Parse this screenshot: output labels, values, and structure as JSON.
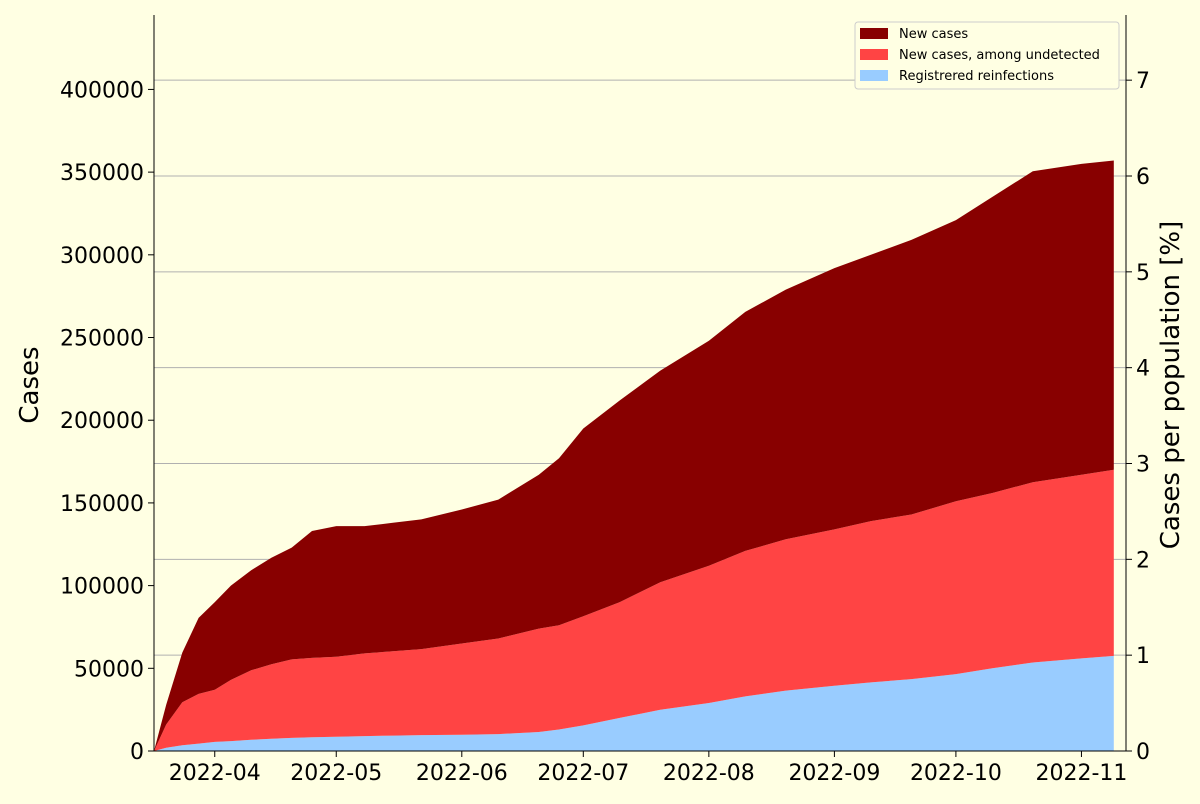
{
  "chart_data": {
    "type": "area",
    "stacked": true,
    "title": "",
    "xlabel": "",
    "ylabel": "Cases",
    "ylabel_right": "Cases per population [%]",
    "ylim": [
      0,
      445000
    ],
    "ylim_right": [
      0,
      7.68
    ],
    "yticks": [
      0,
      50000,
      100000,
      150000,
      200000,
      250000,
      300000,
      350000,
      400000
    ],
    "yticks_right": [
      0,
      1,
      2,
      3,
      4,
      5,
      6,
      7
    ],
    "xlim": [
      "2022-03-17",
      "2022-11-12"
    ],
    "xticks": [
      "2022-04",
      "2022-05",
      "2022-06",
      "2022-07",
      "2022-08",
      "2022-09",
      "2022-10",
      "2022-11"
    ],
    "xtick_dates": [
      "2022-04-01",
      "2022-05-01",
      "2022-06-01",
      "2022-07-01",
      "2022-08-01",
      "2022-09-01",
      "2022-10-01",
      "2022-11-01"
    ],
    "grid": "horizontal, right axis",
    "legend_position": "top-right",
    "x": [
      "2022-03-17",
      "2022-03-20",
      "2022-03-24",
      "2022-03-28",
      "2022-04-01",
      "2022-04-05",
      "2022-04-10",
      "2022-04-15",
      "2022-04-20",
      "2022-04-25",
      "2022-05-01",
      "2022-05-08",
      "2022-05-15",
      "2022-05-22",
      "2022-06-01",
      "2022-06-10",
      "2022-06-20",
      "2022-06-25",
      "2022-07-01",
      "2022-07-10",
      "2022-07-20",
      "2022-08-01",
      "2022-08-10",
      "2022-08-20",
      "2022-09-01",
      "2022-09-10",
      "2022-09-20",
      "2022-10-01",
      "2022-10-10",
      "2022-10-20",
      "2022-11-01",
      "2022-11-09"
    ],
    "series": [
      {
        "name": "Registrered reinfections",
        "color": "#99ccff",
        "values": [
          0,
          2000,
          3500,
          4500,
          5500,
          6000,
          6800,
          7400,
          7900,
          8300,
          8600,
          9000,
          9300,
          9600,
          9800,
          10200,
          11500,
          13000,
          15500,
          20000,
          25000,
          29000,
          33000,
          36500,
          39500,
          41500,
          43500,
          46500,
          50000,
          53500,
          56000,
          57500
        ]
      },
      {
        "name": "New cases, among undetected",
        "color": "#ff4444",
        "values": [
          0,
          14000,
          26000,
          30000,
          31500,
          37000,
          42000,
          45000,
          47500,
          48000,
          48400,
          50000,
          51000,
          52000,
          55200,
          57800,
          62500,
          63000,
          66000,
          70000,
          77000,
          83000,
          88000,
          91500,
          94500,
          97500,
          99500,
          104500,
          106000,
          109000,
          111000,
          112500
        ]
      },
      {
        "name": "New cases",
        "color": "#880000",
        "values": [
          0,
          12000,
          30000,
          46000,
          53000,
          57000,
          60500,
          64500,
          67600,
          76700,
          79000,
          77000,
          77700,
          78400,
          81000,
          84000,
          93000,
          101000,
          113500,
          122000,
          128000,
          136000,
          144500,
          151000,
          158000,
          161000,
          166000,
          170000,
          179000,
          188000,
          188000,
          187000
        ]
      }
    ]
  }
}
